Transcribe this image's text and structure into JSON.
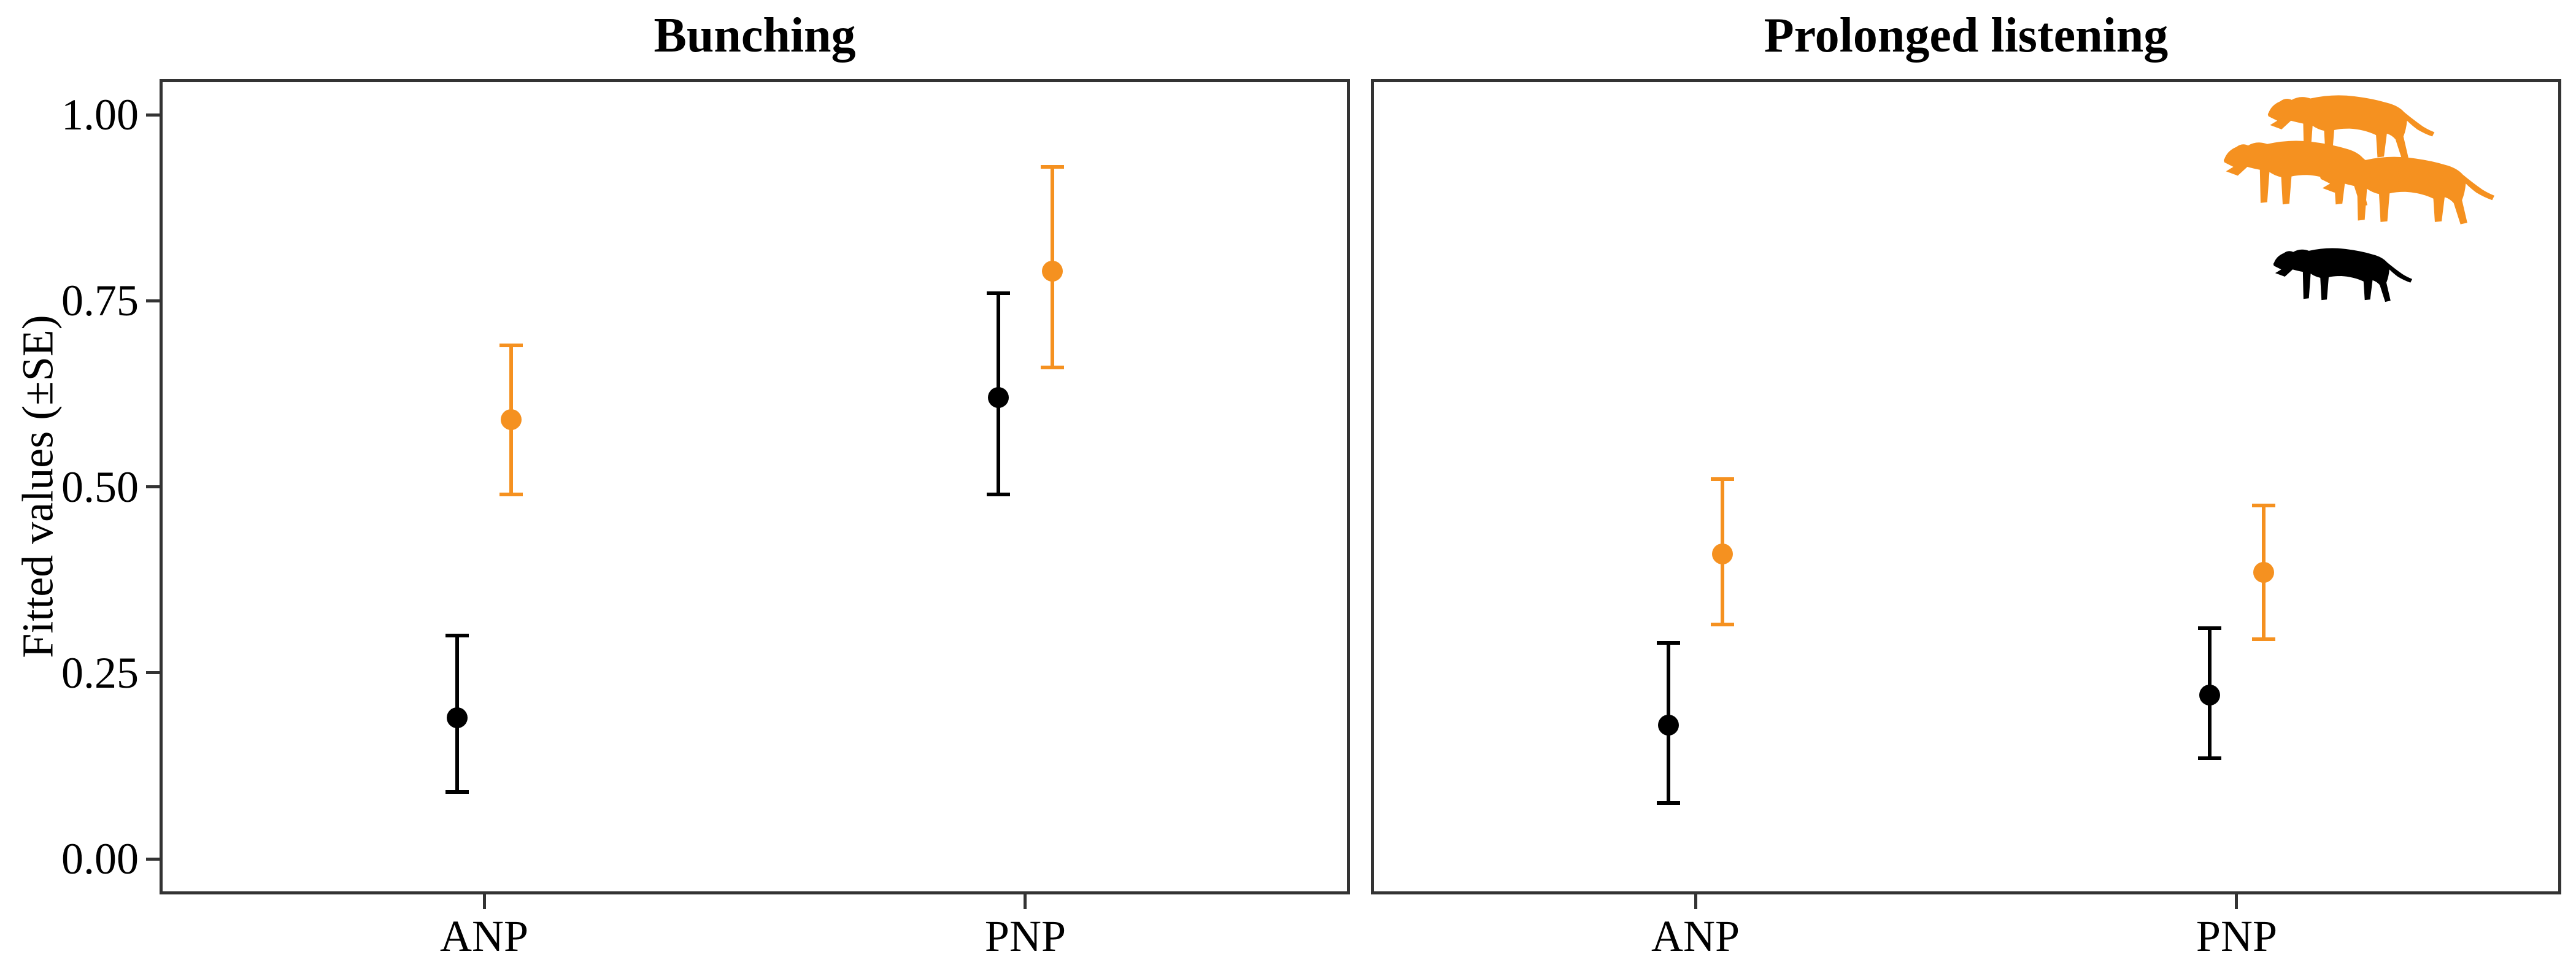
{
  "figure": {
    "y_axis": {
      "label": "Fitted values (±SE)",
      "tick_labels": [
        "0.00",
        "0.25",
        "0.50",
        "0.75",
        "1.00"
      ],
      "tick_values": [
        0,
        0.25,
        0.5,
        0.75,
        1
      ]
    },
    "x_axis": {
      "tick_labels": [
        "ANP",
        "PNP"
      ]
    },
    "colors": {
      "group_orange": "#F59120",
      "single_black": "#000000",
      "panel_border": "#333333"
    },
    "icons": {
      "group_legend": "three-lion-silhouettes-orange",
      "single_legend": "one-lion-silhouette-black"
    }
  },
  "chart_data": [
    {
      "type": "scatter",
      "title": "Bunching",
      "categories": [
        "ANP",
        "PNP"
      ],
      "xlabel": "",
      "ylabel": "Fitted values (±SE)",
      "ylim": [
        0,
        1
      ],
      "grid": false,
      "series": [
        {
          "name": "single lion",
          "color": "#000000",
          "values": [
            0.19,
            0.62
          ],
          "se_lower": [
            0.09,
            0.49
          ],
          "se_upper": [
            0.3,
            0.76
          ]
        },
        {
          "name": "lion group",
          "color": "#F59120",
          "values": [
            0.59,
            0.79
          ],
          "se_lower": [
            0.49,
            0.66
          ],
          "se_upper": [
            0.69,
            0.93
          ]
        }
      ]
    },
    {
      "type": "scatter",
      "title": "Prolonged listening",
      "categories": [
        "ANP",
        "PNP"
      ],
      "xlabel": "",
      "ylabel": "Fitted values (±SE)",
      "ylim": [
        0,
        1
      ],
      "grid": false,
      "legend_position": "top-right",
      "series": [
        {
          "name": "single lion",
          "color": "#000000",
          "values": [
            0.18,
            0.22
          ],
          "se_lower": [
            0.075,
            0.135
          ],
          "se_upper": [
            0.29,
            0.31
          ]
        },
        {
          "name": "lion group",
          "color": "#F59120",
          "values": [
            0.41,
            0.385
          ],
          "se_lower": [
            0.315,
            0.295
          ],
          "se_upper": [
            0.51,
            0.475
          ]
        }
      ]
    }
  ]
}
